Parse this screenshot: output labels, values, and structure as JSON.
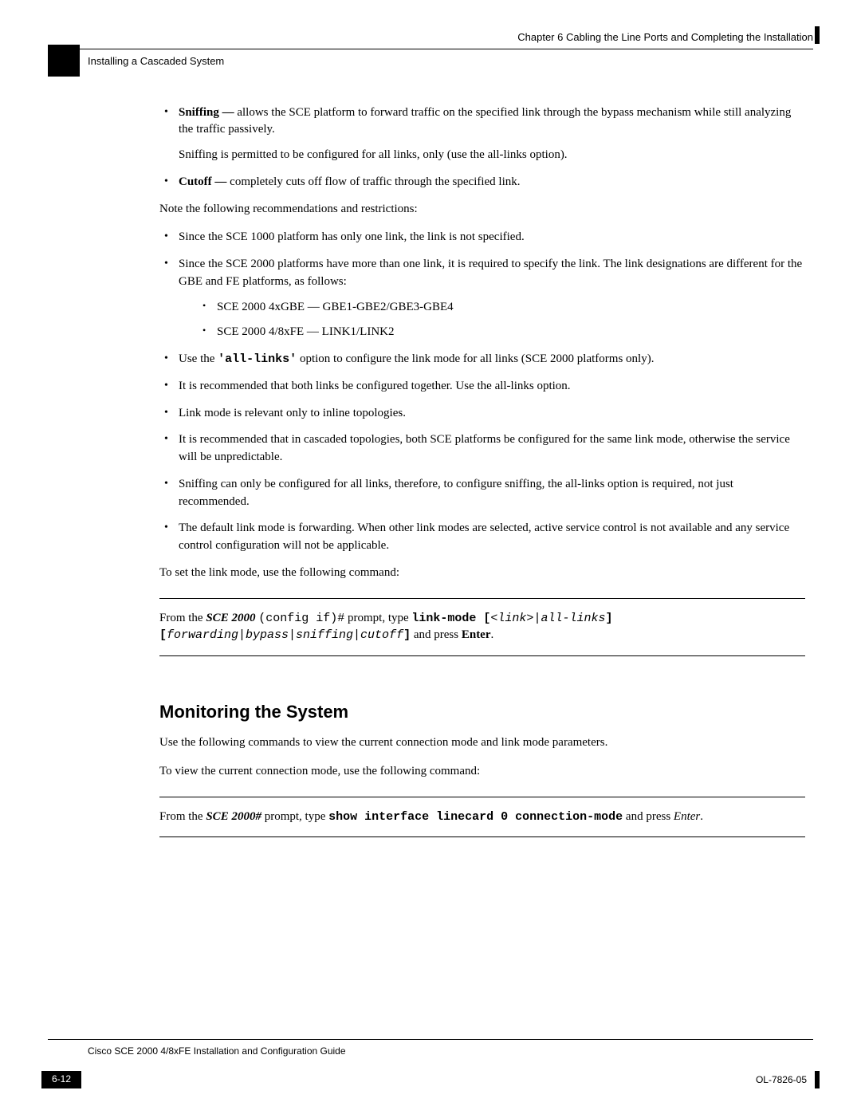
{
  "header": {
    "chapter_label": "Chapter 6      Cabling the Line Ports and Completing the Installation",
    "section_crumb": "Installing a Cascaded System"
  },
  "bullets1": [
    {
      "lead": "Sniffing — ",
      "text": "allows the SCE platform to forward traffic on the specified link through the bypass mechanism while still analyzing the traffic passively.",
      "extra": "Sniffing is permitted to be configured for all links, only (use the all-links option)."
    },
    {
      "lead": "Cutoff — ",
      "text": "completely cuts off flow of traffic through the specified link."
    }
  ],
  "note_intro": "Note the following recommendations and restrictions:",
  "bullets2": [
    {
      "text": "Since the SCE 1000 platform has only one link, the link is not specified."
    },
    {
      "text": "Since the SCE 2000 platforms have more than one link, it is required to specify the link. The link designations are different for the GBE and FE platforms, as follows:",
      "sub": [
        "SCE 2000 4xGBE — GBE1-GBE2/GBE3-GBE4",
        "SCE 2000 4/8xFE — LINK1/LINK2"
      ]
    },
    {
      "pre": "Use the ",
      "code": "'all-links'",
      "post": " option to configure the link mode for all links (SCE 2000 platforms only)."
    },
    {
      "text": "It is recommended that both links be configured together. Use the all-links option."
    },
    {
      "text": "Link mode is relevant only to inline topologies."
    },
    {
      "text": "It is recommended that in cascaded topologies, both SCE platforms be configured for the same link mode, otherwise the service will be unpredictable."
    },
    {
      "text": "Sniffing can only be configured for all links, therefore, to configure sniffing, the all-links option is required, not just recommended."
    },
    {
      "text": "The default link mode is forwarding. When other link modes are selected, active service control is not available and any service control configuration will not be applicable."
    }
  ],
  "set_link_intro": "To set the link mode, use the following command:",
  "cmd1": {
    "pre": "From the ",
    "device": "SCE 2000",
    "prompt": "(config if)#",
    "mid": " prompt, type ",
    "cmd_bold": "link-mode [",
    "arg1": "<link>",
    "pipe": "|",
    "arg2": "all-links",
    "brk": "] [",
    "opts": "forwarding|bypass|sniffing|cutoff",
    "end_brk": "]",
    "post": " and press ",
    "enter": "Enter",
    "dot": "."
  },
  "h2": "Monitoring the System",
  "mon_p1": "Use the following commands to view the current connection mode and link mode parameters.",
  "mon_p2": "To view the current connection mode, use the following command:",
  "cmd2": {
    "pre": "From the ",
    "device": "SCE 2000#",
    "mid": " prompt, type ",
    "cmd_bold": "show interface linecard 0 connection-mode",
    "post": " and press ",
    "enter": "Enter",
    "dot": "."
  },
  "footer": {
    "doc_title": "Cisco SCE 2000 4/8xFE Installation and Configuration Guide",
    "page_number": "6-12",
    "doc_id": "OL-7826-05"
  }
}
